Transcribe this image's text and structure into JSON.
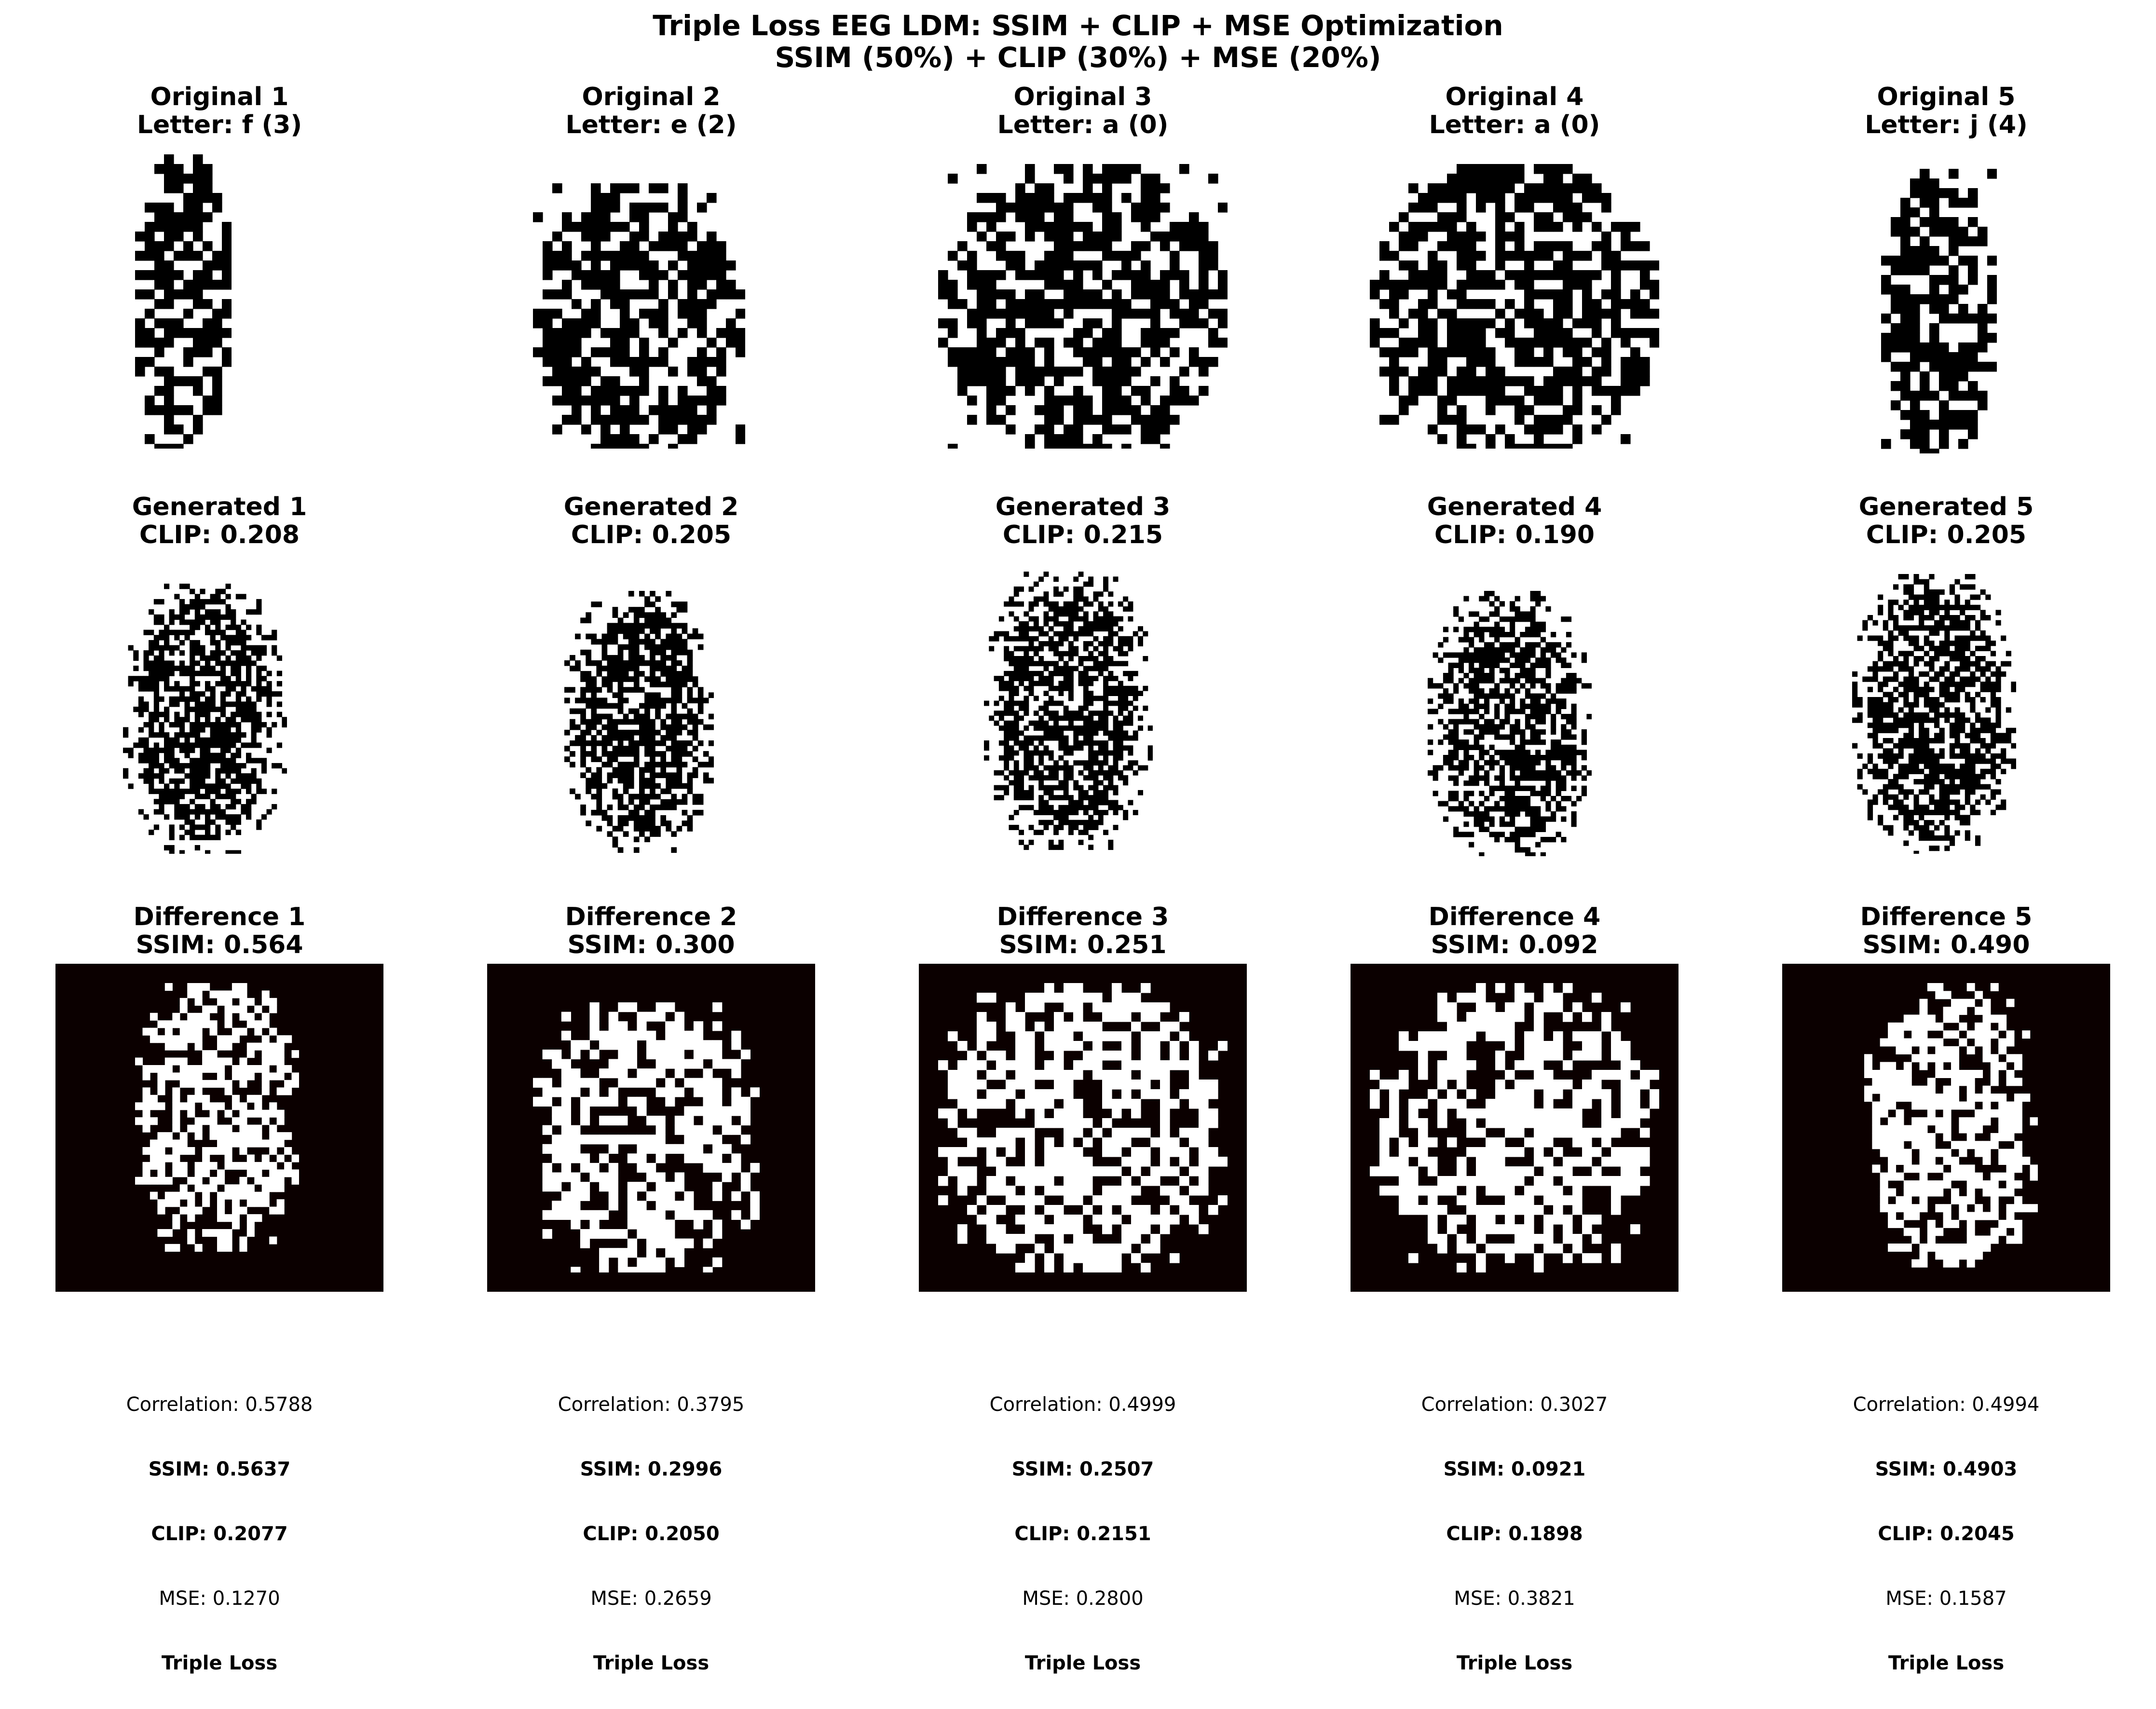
{
  "figure": {
    "title_line1": "Triple Loss EEG LDM: SSIM + CLIP + MSE Optimization",
    "title_line2": "SSIM (50%) + CLIP (30%) + MSE (20%)"
  },
  "colors": {
    "ink": "#000000",
    "diff_background": "#0b0000",
    "paper": "#ffffff"
  },
  "chart_data": {
    "type": "table",
    "columns": [
      {
        "original": "Original 1\nLetter: f (3)",
        "generated": "Generated 1\nCLIP: 0.208",
        "difference": "Difference 1\nSSIM: 0.564",
        "correlation": "Correlation: 0.5788",
        "ssim": "SSIM: 0.5637",
        "clip": "CLIP: 0.2077",
        "mse": "MSE: 0.1270",
        "loss": "Triple Loss"
      },
      {
        "original": "Original 2\nLetter: e (2)",
        "generated": "Generated 2\nCLIP: 0.205",
        "difference": "Difference 2\nSSIM: 0.300",
        "correlation": "Correlation: 0.3795",
        "ssim": "SSIM: 0.2996",
        "clip": "CLIP: 0.2050",
        "mse": "MSE: 0.2659",
        "loss": "Triple Loss"
      },
      {
        "original": "Original 3\nLetter: a (0)",
        "generated": "Generated 3\nCLIP: 0.215",
        "difference": "Difference 3\nSSIM: 0.251",
        "correlation": "Correlation: 0.4999",
        "ssim": "SSIM: 0.2507",
        "clip": "CLIP: 0.2151",
        "mse": "MSE: 0.2800",
        "loss": "Triple Loss"
      },
      {
        "original": "Original 4\nLetter: a (0)",
        "generated": "Generated 4\nCLIP: 0.190",
        "difference": "Difference 4\nSSIM: 0.092",
        "correlation": "Correlation: 0.3027",
        "ssim": "SSIM: 0.0921",
        "clip": "CLIP: 0.1898",
        "mse": "MSE: 0.3821",
        "loss": "Triple Loss"
      },
      {
        "original": "Original 5\nLetter: j (4)",
        "generated": "Generated 5\nCLIP: 0.205",
        "difference": "Difference 5\nSSIM: 0.490",
        "correlation": "Correlation: 0.4994",
        "ssim": "SSIM: 0.4903",
        "clip": "CLIP: 0.2045",
        "mse": "MSE: 0.1587",
        "loss": "Triple Loss"
      }
    ]
  }
}
